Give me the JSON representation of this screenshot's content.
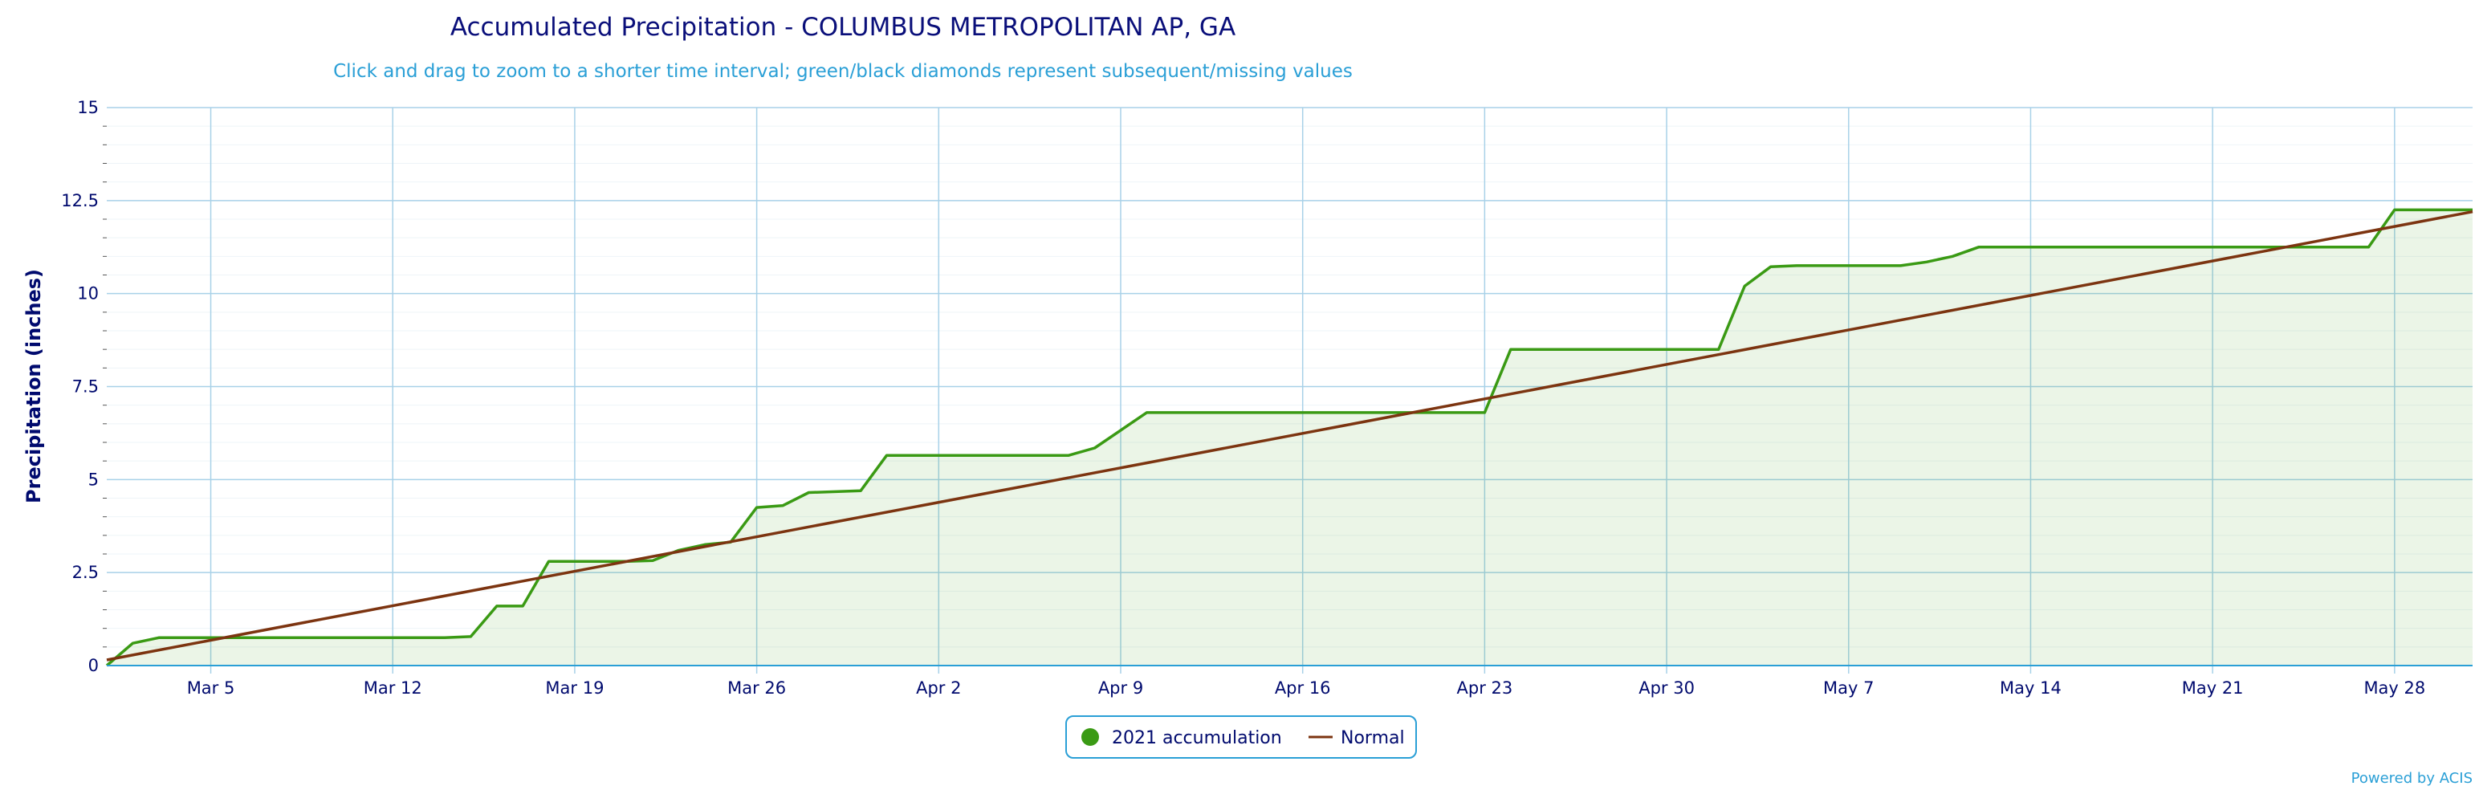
{
  "colors": {
    "accumulation": "#3a9a14",
    "normal": "#7c3410",
    "area_fill": "#3a9a14",
    "grid": "#a8d1e8",
    "title": "#0a0f7a",
    "subtitle": "#2a9fd6",
    "axis_text": "#000a6e",
    "credits": "#2a9fd6"
  },
  "chart_data": {
    "type": "line",
    "title": "Accumulated Precipitation - COLUMBUS METROPOLITAN AP, GA",
    "subtitle": "Click and drag to zoom to a shorter time interval; green/black diamonds represent subsequent/missing values",
    "ylabel": "Precipitation (inches)",
    "xlabel": "",
    "ylim": [
      0,
      15
    ],
    "xlim": [
      "2021-03-01",
      "2021-05-31"
    ],
    "y_ticks": [
      {
        "value": 0,
        "label": "0"
      },
      {
        "value": 2.5,
        "label": "2.5"
      },
      {
        "value": 5,
        "label": "5"
      },
      {
        "value": 7.5,
        "label": "7.5"
      },
      {
        "value": 10,
        "label": "10"
      },
      {
        "value": 12.5,
        "label": "12.5"
      },
      {
        "value": 15,
        "label": "15"
      }
    ],
    "x_ticks": [
      {
        "date": "2021-03-05",
        "label": "Mar 5"
      },
      {
        "date": "2021-03-12",
        "label": "Mar 12"
      },
      {
        "date": "2021-03-19",
        "label": "Mar 19"
      },
      {
        "date": "2021-03-26",
        "label": "Mar 26"
      },
      {
        "date": "2021-04-02",
        "label": "Apr 2"
      },
      {
        "date": "2021-04-09",
        "label": "Apr 9"
      },
      {
        "date": "2021-04-16",
        "label": "Apr 16"
      },
      {
        "date": "2021-04-23",
        "label": "Apr 23"
      },
      {
        "date": "2021-04-30",
        "label": "Apr 30"
      },
      {
        "date": "2021-05-07",
        "label": "May 7"
      },
      {
        "date": "2021-05-14",
        "label": "May 14"
      },
      {
        "date": "2021-05-21",
        "label": "May 21"
      },
      {
        "date": "2021-05-28",
        "label": "May 28"
      }
    ],
    "grid": true,
    "legend_position": "bottom-center",
    "series": [
      {
        "name": "2021 accumulation",
        "points": [
          [
            "2021-03-01",
            0.0
          ],
          [
            "2021-03-02",
            0.6
          ],
          [
            "2021-03-03",
            0.75
          ],
          [
            "2021-03-14",
            0.75
          ],
          [
            "2021-03-15",
            0.78
          ],
          [
            "2021-03-16",
            1.6
          ],
          [
            "2021-03-17",
            1.6
          ],
          [
            "2021-03-18",
            2.8
          ],
          [
            "2021-03-21",
            2.8
          ],
          [
            "2021-03-22",
            2.82
          ],
          [
            "2021-03-23",
            3.1
          ],
          [
            "2021-03-24",
            3.25
          ],
          [
            "2021-03-25",
            3.32
          ],
          [
            "2021-03-26",
            4.25
          ],
          [
            "2021-03-27",
            4.3
          ],
          [
            "2021-03-28",
            4.65
          ],
          [
            "2021-03-30",
            4.7
          ],
          [
            "2021-03-31",
            5.65
          ],
          [
            "2021-04-07",
            5.65
          ],
          [
            "2021-04-08",
            5.85
          ],
          [
            "2021-04-10",
            6.8
          ],
          [
            "2021-04-23",
            6.8
          ],
          [
            "2021-04-24",
            8.5
          ],
          [
            "2021-05-02",
            8.5
          ],
          [
            "2021-05-03",
            10.2
          ],
          [
            "2021-05-04",
            10.72
          ],
          [
            "2021-05-05",
            10.75
          ],
          [
            "2021-05-09",
            10.75
          ],
          [
            "2021-05-10",
            10.85
          ],
          [
            "2021-05-11",
            11.0
          ],
          [
            "2021-05-12",
            11.25
          ],
          [
            "2021-05-27",
            11.25
          ],
          [
            "2021-05-28",
            12.25
          ],
          [
            "2021-05-31",
            12.25
          ]
        ]
      },
      {
        "name": "Normal",
        "points": [
          [
            "2021-03-01",
            0.15
          ],
          [
            "2021-05-31",
            12.2
          ]
        ]
      }
    ]
  },
  "credits": "Powered by ACIS"
}
